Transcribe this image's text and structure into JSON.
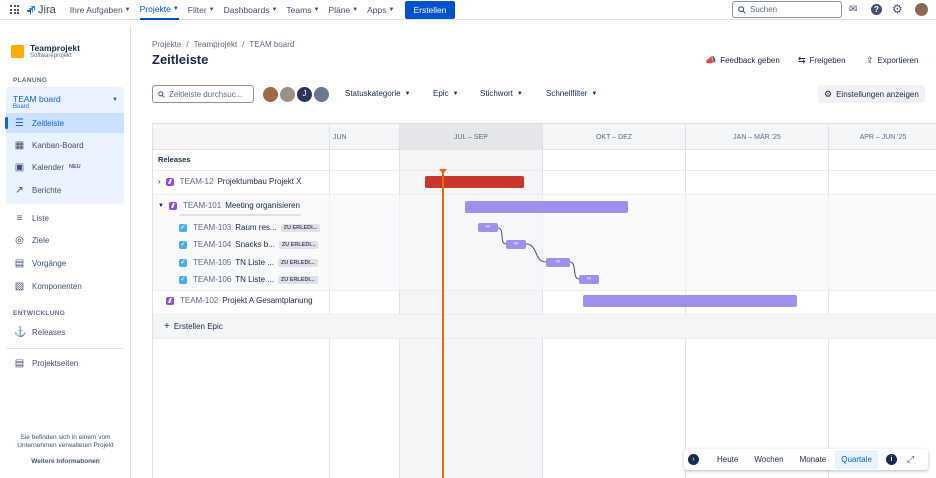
{
  "topnav": {
    "logo": "Jira",
    "items": [
      "Ihre Aufgaben",
      "Projekte",
      "Filter",
      "Dashboards",
      "Teams",
      "Pläne",
      "Apps"
    ],
    "create": "Erstellen",
    "search_placeholder": "Suchen"
  },
  "sidebar": {
    "project_name": "Teamprojekt",
    "project_type": "Softwareprojekt",
    "planning_head": "PLANUNG",
    "board_name": "TEAM board",
    "board_sub": "Board",
    "items": [
      {
        "label": "Zeitleiste",
        "icon": "timeline-icon"
      },
      {
        "label": "Kanban-Board",
        "icon": "board-icon"
      },
      {
        "label": "Kalender",
        "icon": "calendar-icon",
        "badge": "NEU"
      },
      {
        "label": "Berichte",
        "icon": "chart-icon"
      }
    ],
    "items2": [
      {
        "label": "Liste",
        "icon": "list-icon"
      },
      {
        "label": "Ziele",
        "icon": "target-icon"
      },
      {
        "label": "Vorgänge",
        "icon": "issues-icon"
      },
      {
        "label": "Komponenten",
        "icon": "components-icon"
      }
    ],
    "dev_head": "ENTWICKLUNG",
    "releases": "Releases",
    "pages": "Projektseiten",
    "footer1": "Sie befinden sich in einem vom",
    "footer2": "Unternehmen verwalteten Projekt",
    "footer_link": "Weitere Informationen"
  },
  "header": {
    "breadcrumb": [
      "Projekte",
      "Teamprojekt",
      "TEAM board"
    ],
    "title": "Zeitleiste",
    "feedback": "Feedback geben",
    "share": "Freigeben",
    "export": "Exportieren"
  },
  "filters": {
    "search_placeholder": "Zeitleiste durchsuc...",
    "avatar_initial": "J",
    "status": "Statuskategorie",
    "epic": "Epic",
    "label": "Stichwort",
    "quick": "Schnellfilter",
    "settings": "Einstellungen anzeigen"
  },
  "timeline": {
    "columns": [
      "JUN",
      "JUL – SEP",
      "OKT – DEZ",
      "JAN – MÄR '25",
      "APR – JUN '25"
    ],
    "releases_label": "Releases",
    "issues": [
      {
        "key": "TEAM-12",
        "summary": "Projektumbau Projekt X",
        "type": "epic",
        "color": "#c9372c",
        "progress": 0
      },
      {
        "key": "TEAM-101",
        "summary": "Meeting organisieren",
        "type": "epic",
        "color": "#9f8fef",
        "progress": 0
      },
      {
        "key": "TEAM-103",
        "summary": "Raum res...",
        "type": "task",
        "status": "ZU ERLEDI..."
      },
      {
        "key": "TEAM-104",
        "summary": "Snacks b...",
        "type": "task",
        "status": "ZU ERLEDI..."
      },
      {
        "key": "TEAM-105",
        "summary": "TN Liste ...",
        "type": "task",
        "status": "ZU ERLEDI..."
      },
      {
        "key": "TEAM-106",
        "summary": "TN Liste ...",
        "type": "task",
        "status": "ZU ERLEDI..."
      },
      {
        "key": "TEAM-102",
        "summary": "Projekt A Gesamtplanung",
        "type": "epic",
        "color": "#9f8fef"
      }
    ],
    "create_epic": "Erstellen Epic"
  },
  "zoom": {
    "options": [
      "Heute",
      "Wochen",
      "Monate",
      "Quartale"
    ],
    "selected": "Quartale"
  }
}
